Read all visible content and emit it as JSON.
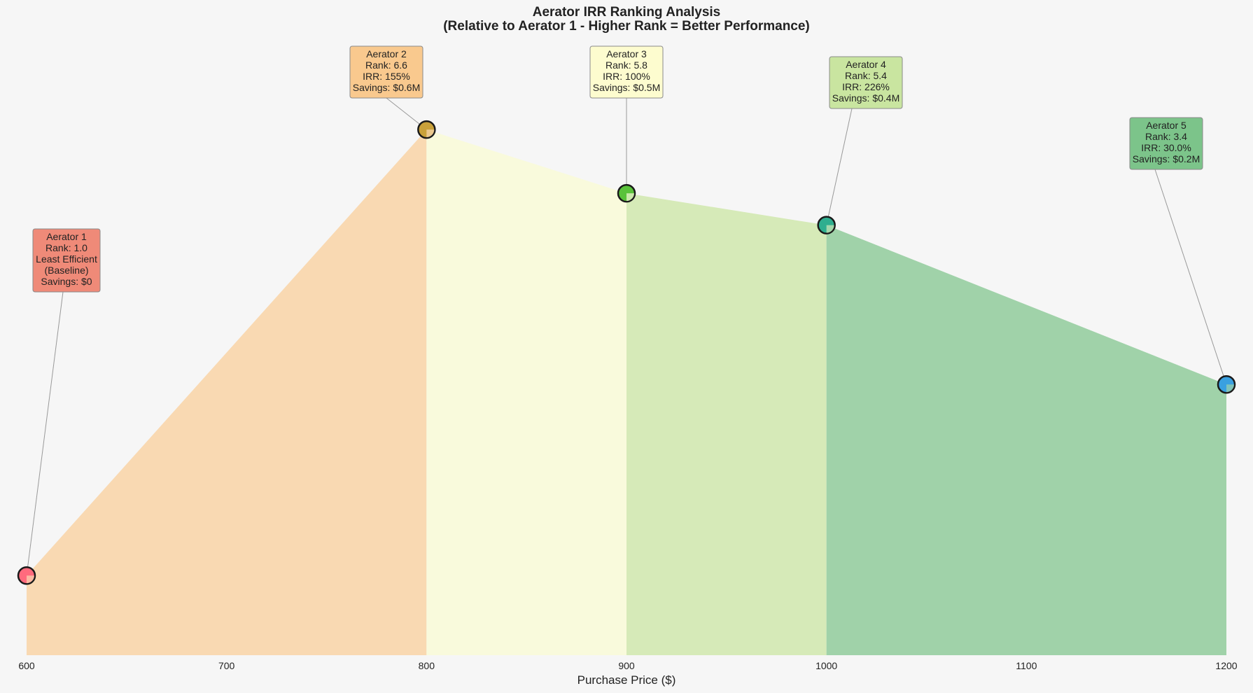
{
  "chart_data": {
    "type": "area",
    "title": "Aerator IRR Ranking Analysis",
    "subtitle": "(Relative to Aerator 1 - Higher Rank = Better Performance)",
    "xlabel": "Purchase Price ($)",
    "ylabel": "",
    "xlim": [
      600,
      1200
    ],
    "ylim": [
      0,
      7.0
    ],
    "x_ticks": [
      "600",
      "700",
      "800",
      "900",
      "1000",
      "1100",
      "1200"
    ],
    "grid": false,
    "points": [
      {
        "name": "Aerator 1",
        "x": 600,
        "y": 1.0,
        "color": "#ff6b7d",
        "lines": [
          "Aerator 1",
          "Rank: 1.0",
          "Least Efficient",
          "(Baseline)",
          "Savings: $0"
        ],
        "box_color": "#ef8a78"
      },
      {
        "name": "Aerator 2",
        "x": 800,
        "y": 6.6,
        "color": "#c9a13a",
        "lines": [
          "Aerator 2",
          "Rank: 6.6",
          "IRR: 155%",
          "Savings: $0.6M"
        ],
        "box_color": "#f9c98e"
      },
      {
        "name": "Aerator 3",
        "x": 900,
        "y": 5.8,
        "color": "#5ac23b",
        "lines": [
          "Aerator 3",
          "Rank: 5.8",
          "IRR: 100%",
          "Savings: $0.5M"
        ],
        "box_color": "#fdfccf"
      },
      {
        "name": "Aerator 4",
        "x": 1000,
        "y": 5.4,
        "color": "#2fae8f",
        "lines": [
          "Aerator 4",
          "Rank: 5.4",
          "IRR: 226%",
          "Savings: $0.4M"
        ],
        "box_color": "#c9e5a0"
      },
      {
        "name": "Aerator 5",
        "x": 1200,
        "y": 3.4,
        "color": "#3aa0e0",
        "lines": [
          "Aerator 5",
          "Rank: 3.4",
          "IRR: 30.0%",
          "Savings: $0.2M"
        ],
        "box_color": "#7cc48a"
      }
    ],
    "segment_fills": [
      "#f9d9b2",
      "#f9fadc",
      "#d6eab8",
      "#a0d2a9"
    ]
  }
}
